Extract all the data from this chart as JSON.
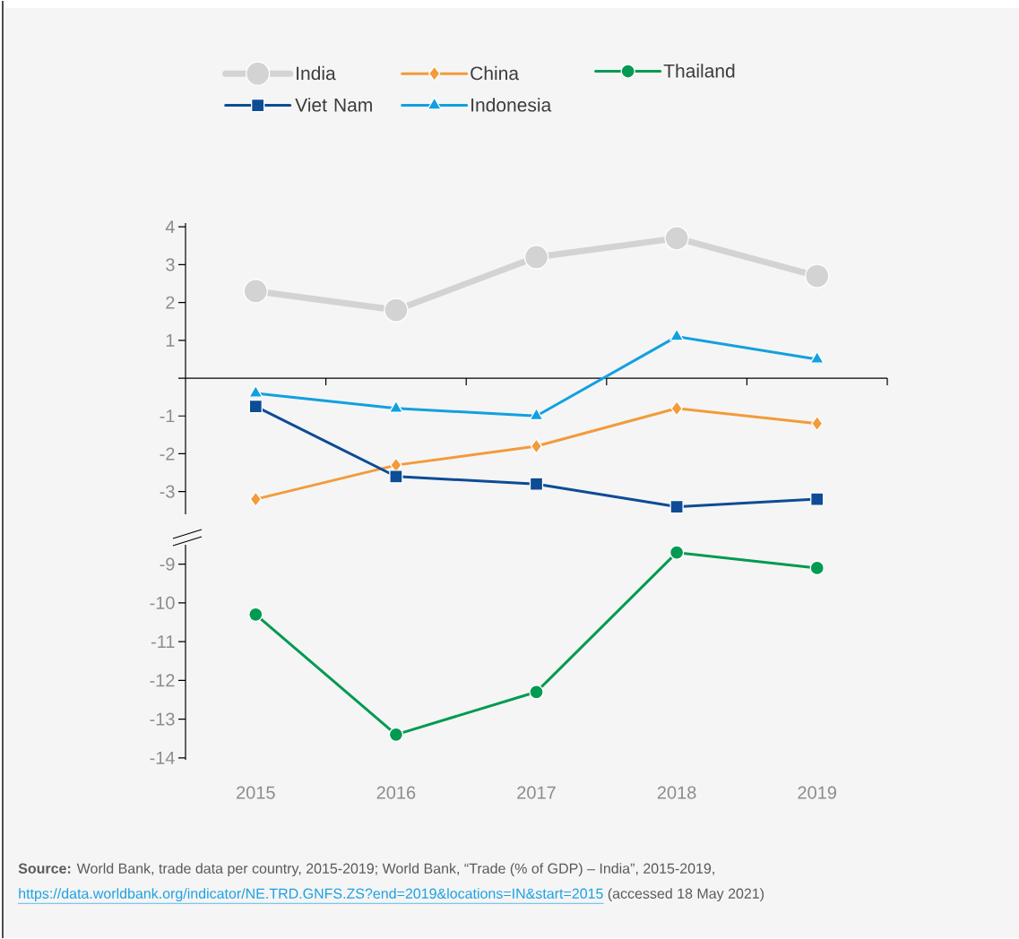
{
  "chart_data": [
    {
      "type": "line",
      "categories": [
        "2015",
        "2016",
        "2017",
        "2018",
        "2019"
      ],
      "ylim": [
        -3.6,
        4.1
      ],
      "yticks": [
        -3,
        -2,
        -1,
        {
          "value": 0,
          "label": null
        },
        1,
        2,
        3,
        4
      ],
      "tick_labels": "y",
      "legend": "top",
      "line_style": "solid",
      "series": [
        {
          "name": "India",
          "color": "#d3d3d3",
          "marker": "circle",
          "values": [
            2.3,
            1.8,
            3.2,
            3.7,
            2.7
          ]
        },
        {
          "name": "China",
          "color": "#f29b3a",
          "marker": "diamond",
          "values": [
            -3.2,
            -2.3,
            -1.8,
            -0.8,
            -1.2
          ]
        },
        {
          "name": "Viet Nam",
          "color": "#0e4c95",
          "marker": "square",
          "values": [
            -0.75,
            -2.6,
            -2.8,
            -3.4,
            -3.2
          ]
        },
        {
          "name": "Indonesia",
          "color": "#12a0e0",
          "marker": "triangle",
          "values": [
            -0.4,
            -0.8,
            -1.0,
            1.1,
            0.5
          ]
        }
      ]
    },
    {
      "type": "line",
      "categories": [
        "2015",
        "2016",
        "2017",
        "2018",
        "2019"
      ],
      "ylim": [
        -14.05,
        -8.5
      ],
      "yticks": [
        -14,
        -13,
        -12,
        -11,
        -10,
        -9
      ],
      "legend": "top",
      "line_style": "solid",
      "series": [
        {
          "name": "Thailand",
          "color": "#009a52",
          "marker": "circle",
          "values": [
            -10.3,
            -13.4,
            -12.3,
            -8.7,
            -9.1
          ]
        }
      ],
      "annotations": [
        "**Source:** World Bank, trade data per country, 2015-2019; World Bank, “Trade (% of GDP) – India”, 2015-2019,",
        "https://data.worldbank.org/indicator/NE.TRD.GNFS.ZS?end=2019&locations=IN&start=2015",
        "(accessed 18 May 2021)"
      ]
    }
  ]
}
